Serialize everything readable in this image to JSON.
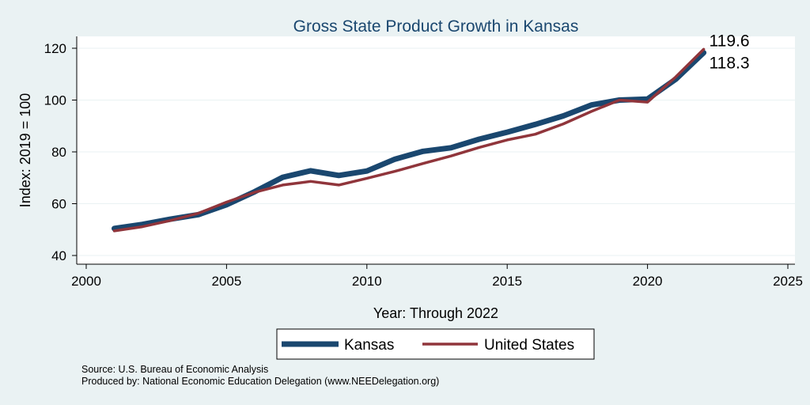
{
  "chart_data": {
    "type": "line",
    "title": "Gross State Product Growth in Kansas",
    "xlabel": "Year: Through 2022",
    "ylabel": "Index: 2019 = 100",
    "xlim": [
      2000,
      2025
    ],
    "ylim": [
      40,
      120
    ],
    "xticks": [
      2000,
      2005,
      2010,
      2015,
      2020,
      2025
    ],
    "yticks": [
      40,
      60,
      80,
      100,
      120
    ],
    "grid": true,
    "legend_position": "bottom",
    "x": [
      2001,
      2002,
      2003,
      2004,
      2005,
      2006,
      2007,
      2008,
      2009,
      2010,
      2011,
      2012,
      2013,
      2014,
      2015,
      2016,
      2017,
      2018,
      2019,
      2020,
      2021,
      2022
    ],
    "series": [
      {
        "name": "Kansas",
        "color": "#1a476f",
        "values": [
          50.4,
          52.0,
          54.0,
          55.8,
          59.6,
          64.6,
          70.2,
          72.7,
          70.9,
          72.6,
          77.2,
          80.2,
          81.6,
          84.9,
          87.6,
          90.6,
          93.9,
          98.1,
          100.0,
          100.4,
          108.0,
          118.3
        ],
        "end_label": "118.3"
      },
      {
        "name": "United States",
        "color": "#90353b",
        "values": [
          49.5,
          51.1,
          53.5,
          56.3,
          60.6,
          64.4,
          67.2,
          68.6,
          67.2,
          69.8,
          72.5,
          75.5,
          78.4,
          81.7,
          84.6,
          86.8,
          90.8,
          95.6,
          100.0,
          99.2,
          108.9,
          119.6
        ],
        "end_label": "119.6"
      }
    ]
  },
  "footer": {
    "source": "Source: U.S. Bureau of Economic Analysis",
    "produced_by": "Produced by: National Economic Education Delegation (www.NEEDelegation.org)"
  }
}
